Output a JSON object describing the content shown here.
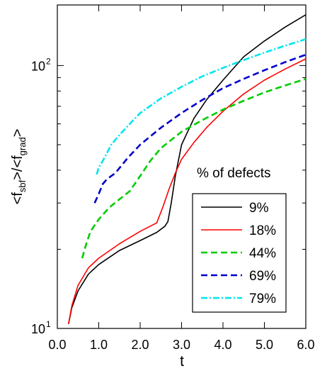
{
  "chart_data": {
    "type": "line",
    "xlabel": "t",
    "ylabel": "<f_sbf>/<f_grad>",
    "ylabel_parts": {
      "open": "<f",
      "sub1": "sbf",
      "mid": ">/<f",
      "sub2": "grad",
      "close": ">"
    },
    "x_scale": "linear",
    "y_scale": "log",
    "xlim": [
      0.0,
      6.0
    ],
    "ylim": [
      10,
      170
    ],
    "x_ticks": [
      0.0,
      1.0,
      2.0,
      3.0,
      4.0,
      5.0,
      6.0
    ],
    "x_tick_labels": [
      "0.0",
      "1.0",
      "2.0",
      "3.0",
      "4.0",
      "5.0",
      "6.0"
    ],
    "y_major_ticks": [
      10,
      100
    ],
    "y_tick_labels": [
      {
        "base": "10",
        "exp": "1"
      },
      {
        "base": "10",
        "exp": "2"
      }
    ],
    "y_minor_ticks": [
      20,
      30,
      40,
      50,
      60,
      70,
      80,
      90
    ],
    "grid": false,
    "legend": {
      "title": "% of defects",
      "placement": "center-right"
    },
    "series": [
      {
        "name": "9%",
        "color": "#000000",
        "dash": "solid",
        "x": [
          0.27,
          0.35,
          0.5,
          0.75,
          1.0,
          1.5,
          2.0,
          2.4,
          2.6,
          2.67,
          2.75,
          2.85,
          3.0,
          3.3,
          3.6,
          4.0,
          4.5,
          5.0,
          5.5,
          6.0
        ],
        "y": [
          10.4,
          12.0,
          13.9,
          16.1,
          17.5,
          19.8,
          21.6,
          23.2,
          24.5,
          25.5,
          30.0,
          38.0,
          50.0,
          63.0,
          74.0,
          88.0,
          108.0,
          124.0,
          140.0,
          156.0
        ]
      },
      {
        "name": "18%",
        "color": "#ff0000",
        "dash": "solid",
        "x": [
          0.27,
          0.35,
          0.5,
          0.75,
          1.0,
          1.5,
          2.0,
          2.4,
          2.55,
          2.7,
          2.85,
          3.0,
          3.3,
          3.6,
          4.0,
          4.5,
          5.0,
          5.5,
          6.0
        ],
        "y": [
          10.4,
          12.2,
          14.6,
          17.0,
          18.5,
          21.0,
          23.4,
          25.2,
          29.0,
          34.0,
          39.0,
          44.0,
          51.0,
          58.0,
          67.0,
          78.0,
          88.0,
          97.0,
          106.0
        ]
      },
      {
        "name": "44%",
        "color": "#00cc00",
        "dash": "dashed",
        "x": [
          0.6,
          0.7,
          0.8,
          1.0,
          1.25,
          1.5,
          1.75,
          2.0,
          2.25,
          2.5,
          3.0,
          3.5,
          4.0,
          4.5,
          5.0,
          5.5,
          6.0
        ],
        "y": [
          18.5,
          21.0,
          23.4,
          26.0,
          28.8,
          31.0,
          33.3,
          38.0,
          43.5,
          48.5,
          56.0,
          62.0,
          68.0,
          73.5,
          79.0,
          84.0,
          89.0
        ]
      },
      {
        "name": "69%",
        "color": "#0000cc",
        "dash": "dashed",
        "x": [
          0.9,
          1.0,
          1.1,
          1.2,
          1.4,
          1.7,
          2.0,
          2.5,
          3.0,
          3.5,
          4.0,
          4.5,
          5.0,
          5.5,
          6.0
        ],
        "y": [
          30.0,
          32.5,
          35.5,
          37.0,
          39.0,
          44.5,
          50.0,
          58.0,
          66.0,
          74.0,
          82.0,
          89.0,
          96.0,
          103.0,
          110.0
        ]
      },
      {
        "name": "79%",
        "color": "#00e5ee",
        "dash": "dashdot",
        "x": [
          0.95,
          1.0,
          1.1,
          1.2,
          1.3,
          1.5,
          1.75,
          2.0,
          2.5,
          3.0,
          3.5,
          4.0,
          4.5,
          5.0,
          5.5,
          6.0
        ],
        "y": [
          38.5,
          41.0,
          43.5,
          46.5,
          50.0,
          54.5,
          60.0,
          66.0,
          75.0,
          83.0,
          91.0,
          98.0,
          105.0,
          112.0,
          119.0,
          126.0
        ]
      }
    ]
  }
}
